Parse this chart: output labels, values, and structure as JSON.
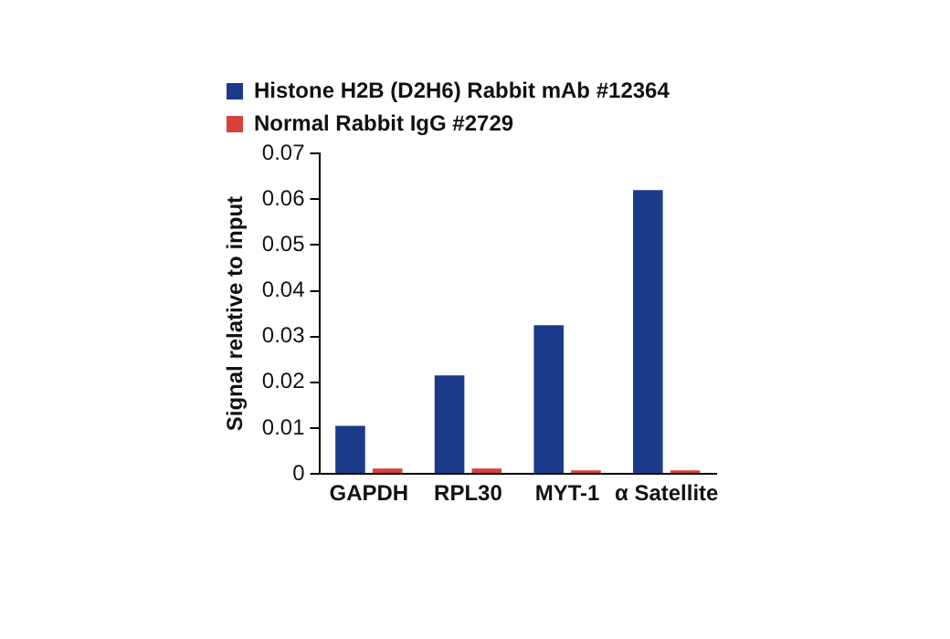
{
  "chart_data": {
    "type": "bar",
    "ylabel": "Signal relative to input",
    "categories": [
      "GAPDH",
      "RPL30",
      "MYT-1",
      "α Satellite"
    ],
    "series": [
      {
        "name": "Histone H2B (D2H6) Rabbit mAb #12364",
        "color": "#1a3a8a",
        "values": [
          0.0105,
          0.0215,
          0.0325,
          0.062
        ]
      },
      {
        "name": "Normal Rabbit IgG #2729",
        "color": "#d9403a",
        "values": [
          0.0012,
          0.0012,
          0.0008,
          0.0008
        ]
      }
    ],
    "ylim": [
      0,
      0.07
    ],
    "yticks": [
      0,
      0.01,
      0.02,
      0.03,
      0.04,
      0.05,
      0.06,
      0.07
    ],
    "grid": false,
    "legend": "top left"
  }
}
